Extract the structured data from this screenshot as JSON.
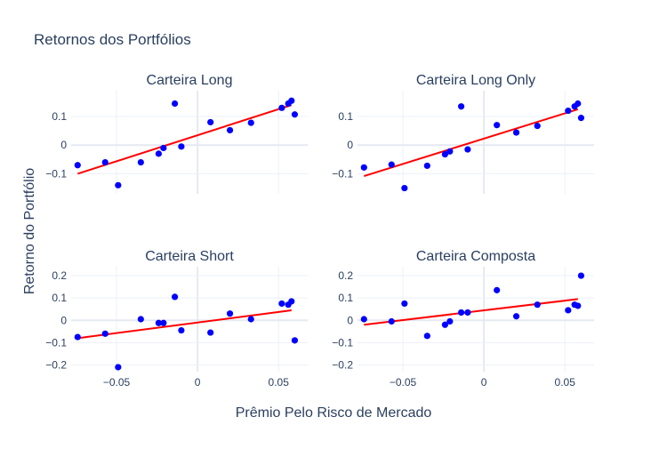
{
  "chart_data": {
    "type": "scatter",
    "title": "Retornos dos Portfólios",
    "xlabel": "Prêmio Pelo Risco de Mercado",
    "ylabel": "Retorno do Portfólio",
    "grid": true,
    "legend": "none",
    "colors": {
      "points": "#0000ff",
      "fit": "#ff0000",
      "grid": "#ebf0f8",
      "zero": "#e5e9f2",
      "text": "#2a3f5f"
    },
    "xlim": [
      -0.078,
      0.068
    ],
    "x_ticks": [
      -0.05,
      0,
      0.05
    ],
    "x_tick_labels": [
      "−0.05",
      "0",
      "0.05"
    ],
    "x": [
      -0.074,
      -0.057,
      -0.049,
      -0.035,
      -0.024,
      -0.021,
      -0.014,
      -0.01,
      0.008,
      0.02,
      0.033,
      0.052,
      0.056,
      0.058,
      0.06
    ],
    "panels": [
      {
        "title": "Carteira Long",
        "ylim": [
          -0.17,
          0.19
        ],
        "y_ticks": [
          -0.1,
          0,
          0.1
        ],
        "y_tick_labels": [
          "−0.1",
          "0",
          "0.1"
        ],
        "y": [
          -0.07,
          -0.06,
          -0.14,
          -0.06,
          -0.03,
          -0.01,
          0.145,
          -0.005,
          0.08,
          0.052,
          0.078,
          0.13,
          0.145,
          0.155,
          0.107
        ],
        "fit": {
          "x": [
            -0.074,
            0.058
          ],
          "y": [
            -0.1,
            0.14
          ]
        }
      },
      {
        "title": "Carteira Long Only",
        "ylim": [
          -0.17,
          0.19
        ],
        "y_ticks": [
          -0.1,
          0,
          0.1
        ],
        "y_tick_labels": [
          "−0.1",
          "0",
          "0.1"
        ],
        "y": [
          -0.078,
          -0.068,
          -0.15,
          -0.072,
          -0.032,
          -0.022,
          0.135,
          -0.015,
          0.07,
          0.044,
          0.067,
          0.12,
          0.135,
          0.145,
          0.095
        ],
        "fit": {
          "x": [
            -0.074,
            0.058
          ],
          "y": [
            -0.108,
            0.125
          ]
        }
      },
      {
        "title": "Carteira Short",
        "ylim": [
          -0.23,
          0.24
        ],
        "y_ticks": [
          -0.2,
          -0.1,
          0,
          0.1,
          0.2
        ],
        "y_tick_labels": [
          "−0.2",
          "−0.1",
          "0",
          "0.1",
          "0.2"
        ],
        "y": [
          -0.075,
          -0.06,
          -0.21,
          0.005,
          -0.012,
          -0.012,
          0.105,
          -0.045,
          -0.055,
          0.03,
          0.005,
          0.075,
          0.07,
          0.085,
          -0.09
        ],
        "fit": {
          "x": [
            -0.074,
            0.058
          ],
          "y": [
            -0.08,
            0.045
          ]
        }
      },
      {
        "title": "Carteira Composta",
        "ylim": [
          -0.23,
          0.24
        ],
        "y_ticks": [
          -0.2,
          -0.1,
          0,
          0.1,
          0.2
        ],
        "y_tick_labels": [
          "−0.2",
          "−0.1",
          "0",
          "0.1",
          "0.2"
        ],
        "y": [
          0.005,
          -0.005,
          0.075,
          -0.07,
          -0.02,
          -0.005,
          0.035,
          0.035,
          0.135,
          0.018,
          0.07,
          0.045,
          0.07,
          0.065,
          0.2
        ],
        "fit": {
          "x": [
            -0.074,
            0.058
          ],
          "y": [
            -0.02,
            0.095
          ]
        }
      }
    ]
  }
}
